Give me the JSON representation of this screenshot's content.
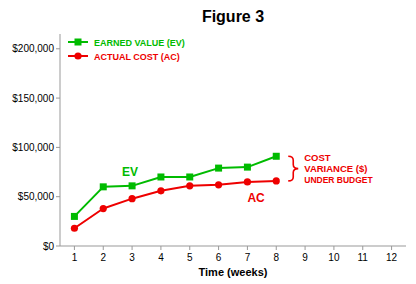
{
  "chart_data": {
    "type": "line",
    "title": "Figure 3",
    "x_label": "Time (weeks)",
    "x": [
      1,
      2,
      3,
      4,
      5,
      6,
      7,
      8
    ],
    "series": [
      {
        "name": "EARNED VALUE (EV)",
        "color": "#00bb00",
        "marker": "square",
        "values": [
          30000,
          60000,
          61000,
          70000,
          70000,
          79000,
          80000,
          91000
        ]
      },
      {
        "name": "ACTUAL COST (AC)",
        "color": "#ee0000",
        "marker": "circle",
        "values": [
          18000,
          38000,
          48000,
          56000,
          61000,
          62000,
          65000,
          66000
        ]
      }
    ],
    "xlim": [
      0.5,
      12.5
    ],
    "ylim": [
      0,
      215000
    ],
    "xticks": [
      1,
      2,
      3,
      4,
      5,
      6,
      7,
      8,
      9,
      10,
      11,
      12
    ],
    "yticks": [
      {
        "value": 0,
        "label": "$0"
      },
      {
        "value": 50000,
        "label": "$50,000"
      },
      {
        "value": 100000,
        "label": "$100,000"
      },
      {
        "value": 150000,
        "label": "$150,000"
      },
      {
        "value": 200000,
        "label": "$200,000"
      }
    ],
    "legend": "upper left",
    "grid": false,
    "annotations": [
      {
        "text": "EV"
      },
      {
        "text": "AC"
      },
      {
        "text": "COST"
      },
      {
        "text": "VARIANCE ($)"
      },
      {
        "text": "UNDER BUDGET"
      }
    ],
    "background_color": "#ffffff"
  }
}
